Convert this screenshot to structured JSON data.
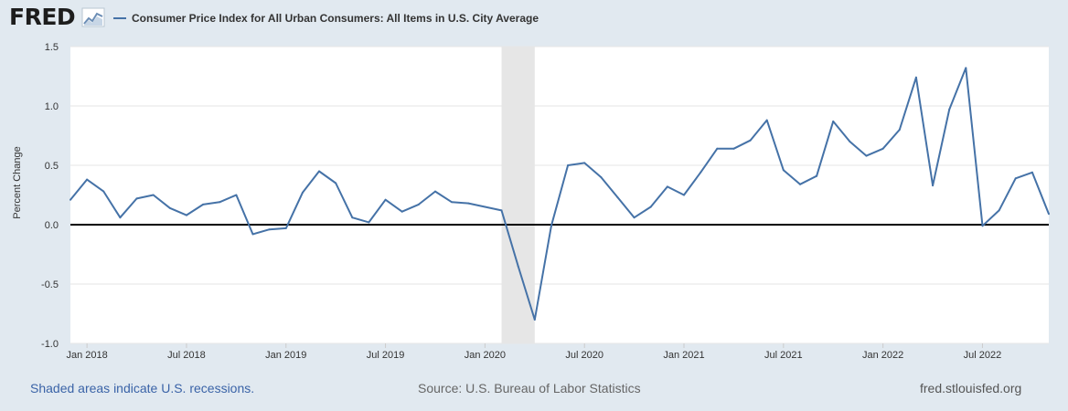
{
  "header": {
    "logo_text": "FRED",
    "logo_icon": "chart-line-icon",
    "legend_label": "Consumer Price Index for All Urban Consumers: All Items in U.S. City Average",
    "legend_color": "#4572a7"
  },
  "footer": {
    "recession_note": "Shaded areas indicate U.S. recessions.",
    "source": "Source: U.S. Bureau of Labor Statistics",
    "site": "fred.stlouisfed.org"
  },
  "chart_data": {
    "type": "line",
    "title": "",
    "xlabel": "",
    "ylabel": "Percent Change",
    "ylim": [
      -1.0,
      1.5
    ],
    "y_ticks": [
      -1.0,
      -0.5,
      0.0,
      0.5,
      1.0,
      1.5
    ],
    "y_tick_labels": [
      "-1.0",
      "-0.5",
      "0.0",
      "0.5",
      "1.0",
      "1.5"
    ],
    "x_ticks": [
      "2018-01",
      "2018-07",
      "2019-01",
      "2019-07",
      "2020-01",
      "2020-07",
      "2021-01",
      "2021-07",
      "2022-01",
      "2022-07"
    ],
    "x_tick_labels": [
      "Jan 2018",
      "Jul 2018",
      "Jan 2019",
      "Jul 2019",
      "Jan 2020",
      "Jul 2020",
      "Jan 2021",
      "Jul 2021",
      "Jan 2022",
      "Jul 2022"
    ],
    "x_range": [
      "2017-12",
      "2022-11"
    ],
    "grid": true,
    "zero_line": true,
    "recessions": [
      {
        "start": "2020-02",
        "end": "2020-04"
      }
    ],
    "series": [
      {
        "color": "#4572a7",
        "x": [
          "2017-12",
          "2018-01",
          "2018-02",
          "2018-03",
          "2018-04",
          "2018-05",
          "2018-06",
          "2018-07",
          "2018-08",
          "2018-09",
          "2018-10",
          "2018-11",
          "2018-12",
          "2019-01",
          "2019-02",
          "2019-03",
          "2019-04",
          "2019-05",
          "2019-06",
          "2019-07",
          "2019-08",
          "2019-09",
          "2019-10",
          "2019-11",
          "2019-12",
          "2020-01",
          "2020-02",
          "2020-03",
          "2020-04",
          "2020-05",
          "2020-06",
          "2020-07",
          "2020-08",
          "2020-09",
          "2020-10",
          "2020-11",
          "2020-12",
          "2021-01",
          "2021-02",
          "2021-03",
          "2021-04",
          "2021-05",
          "2021-06",
          "2021-07",
          "2021-08",
          "2021-09",
          "2021-10",
          "2021-11",
          "2021-12",
          "2022-01",
          "2022-02",
          "2022-03",
          "2022-04",
          "2022-05",
          "2022-06",
          "2022-07",
          "2022-08",
          "2022-09",
          "2022-10",
          "2022-11"
        ],
        "values": [
          0.21,
          0.38,
          0.28,
          0.06,
          0.22,
          0.25,
          0.14,
          0.08,
          0.17,
          0.19,
          0.25,
          -0.08,
          -0.04,
          -0.03,
          0.27,
          0.45,
          0.35,
          0.06,
          0.02,
          0.21,
          0.11,
          0.17,
          0.28,
          0.19,
          0.18,
          0.15,
          0.12,
          -0.35,
          -0.8,
          -0.01,
          0.5,
          0.52,
          0.4,
          0.23,
          0.06,
          0.15,
          0.32,
          0.25,
          0.44,
          0.64,
          0.64,
          0.71,
          0.88,
          0.46,
          0.34,
          0.41,
          0.87,
          0.7,
          0.58,
          0.64,
          0.8,
          1.24,
          0.33,
          0.97,
          1.32,
          -0.01,
          0.12,
          0.39,
          0.44,
          0.09
        ]
      }
    ]
  }
}
